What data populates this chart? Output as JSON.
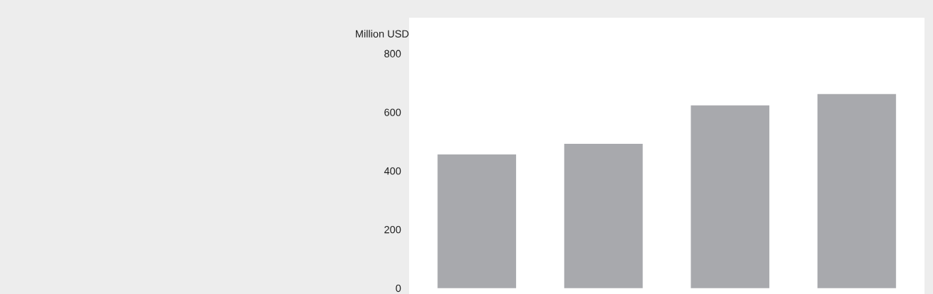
{
  "chart_data": {
    "type": "bar",
    "ylabel": "Million USD",
    "categories": [
      null,
      null,
      null,
      null
    ],
    "values": [
      456,
      492,
      623,
      662
    ],
    "color": "#a8a9ad",
    "ylim": [
      -20,
      922
    ],
    "yticks": [
      0,
      200,
      400,
      600,
      800
    ],
    "grid": false,
    "tick_labels": "y"
  }
}
